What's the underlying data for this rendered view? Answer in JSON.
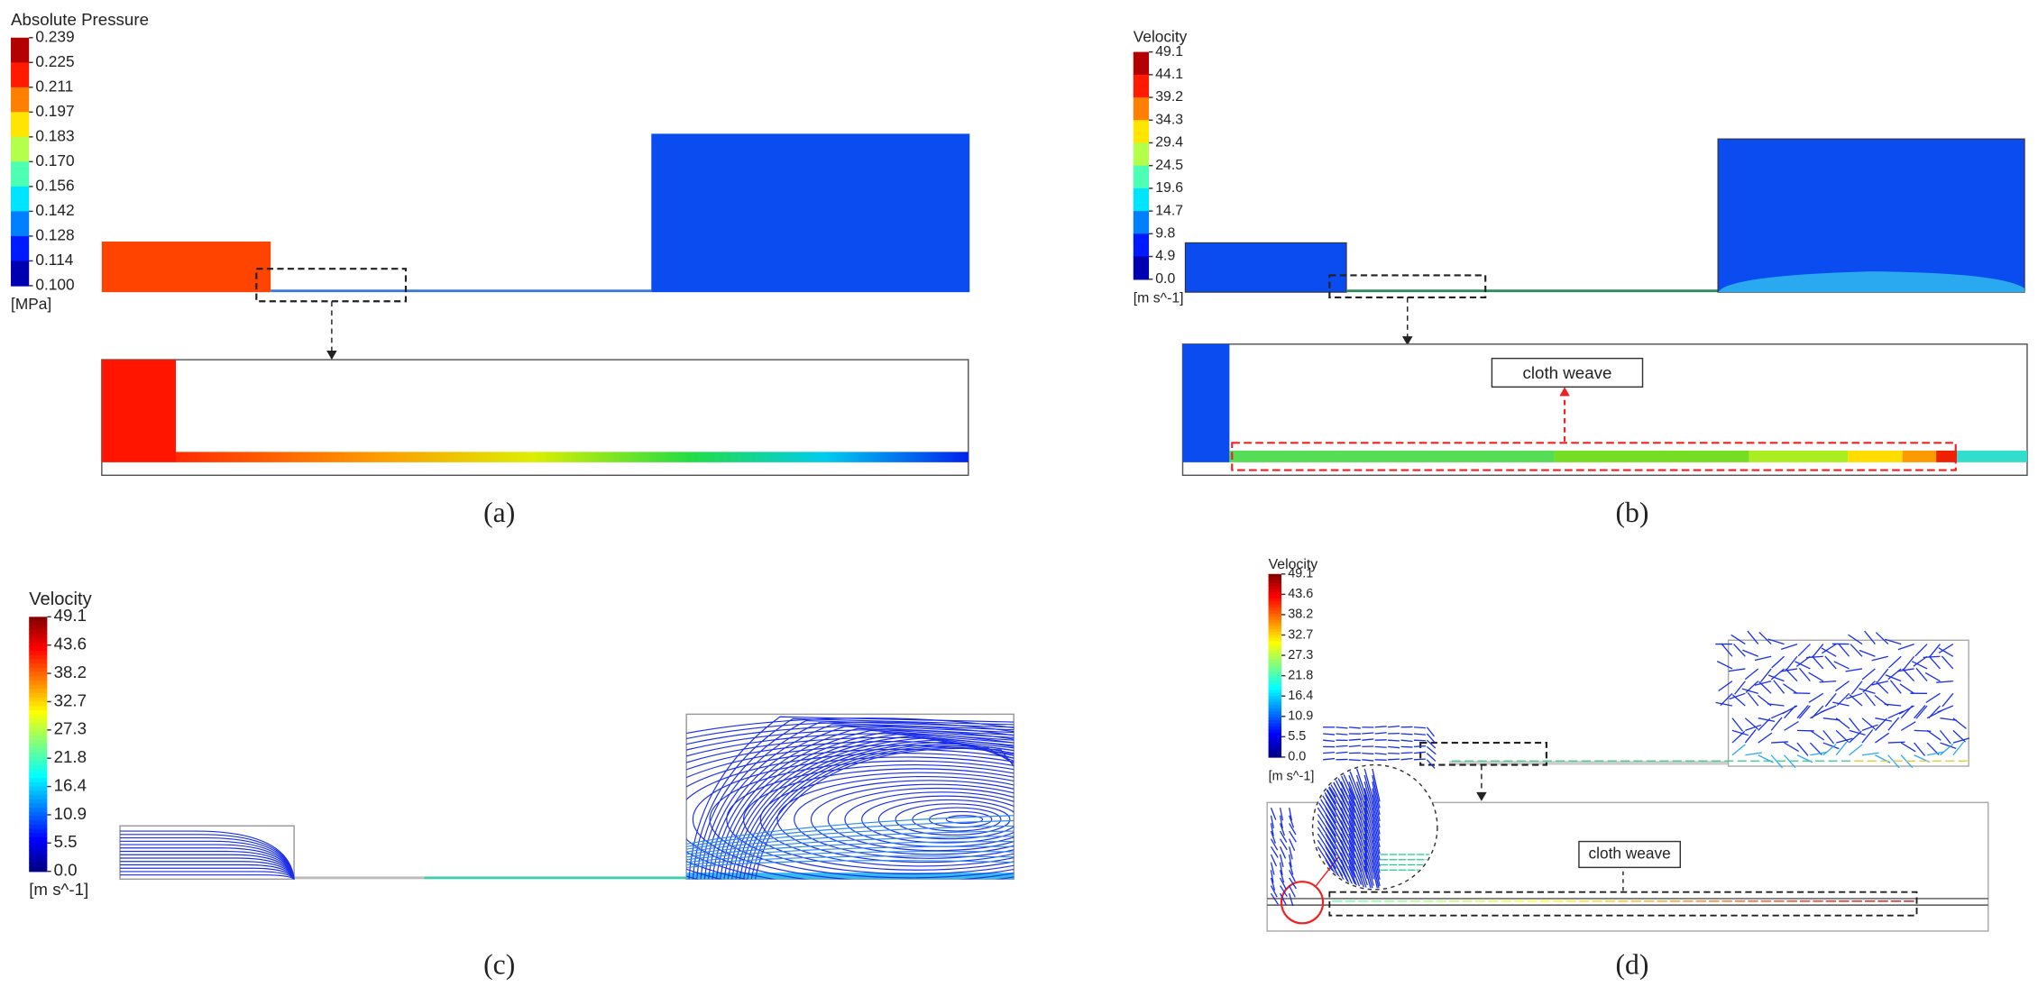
{
  "panels": [
    {
      "label": "(a)",
      "legend": {
        "title": "Absolute Pressure",
        "ticks": [
          "0.239",
          "0.225",
          "0.211",
          "0.197",
          "0.183",
          "0.170",
          "0.156",
          "0.142",
          "0.128",
          "0.114",
          "0.100"
        ],
        "unit": "[MPa]"
      }
    },
    {
      "label": "(b)",
      "legend": {
        "title": "Velocity",
        "ticks": [
          "49.1",
          "44.1",
          "39.2",
          "34.3",
          "29.4",
          "24.5",
          "19.6",
          "14.7",
          "9.8",
          "4.9",
          "0.0"
        ],
        "unit": "[m s^-1]"
      },
      "annotation": "cloth weave"
    },
    {
      "label": "(c)",
      "legend": {
        "title": "Velocity",
        "ticks": [
          "49.1",
          "43.6",
          "38.2",
          "32.7",
          "27.3",
          "21.8",
          "16.4",
          "10.9",
          "5.5",
          "0.0"
        ],
        "unit": "[m s^-1]"
      }
    },
    {
      "label": "(d)",
      "legend": {
        "title": "Velocity",
        "ticks": [
          "49.1",
          "43.6",
          "38.2",
          "32.7",
          "27.3",
          "21.8",
          "16.4",
          "10.9",
          "5.5",
          "0.0"
        ],
        "unit": "[m s^-1]"
      },
      "annotation": "cloth weave"
    }
  ]
}
